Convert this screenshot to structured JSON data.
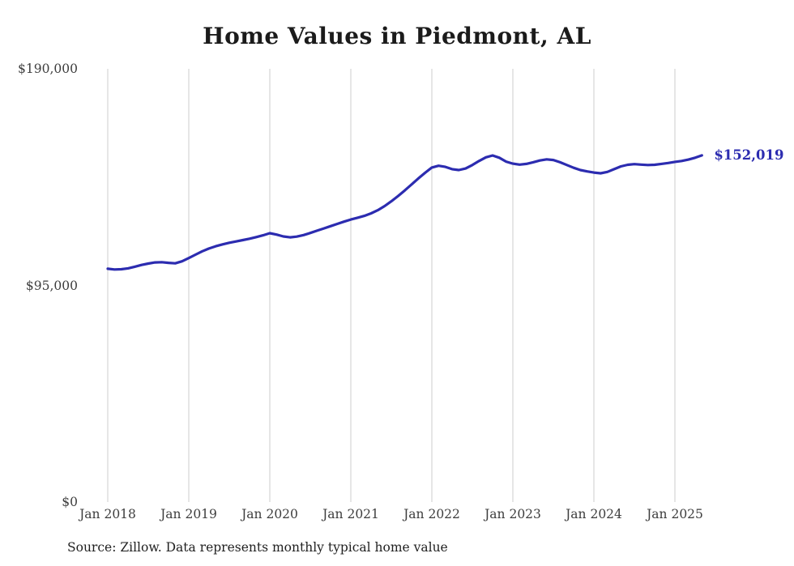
{
  "page": {
    "title": "Home Values in Piedmont, AL",
    "source": "Source: Zillow. Data represents monthly typical home value"
  },
  "chart_data": {
    "type": "line",
    "title": "Home Values in Piedmont, AL",
    "xlabel": "",
    "ylabel": "",
    "ylim": [
      0,
      190000
    ],
    "grid": "vertical-only",
    "line_color": "#2c2cb0",
    "grid_color": "#cccccc",
    "end_label": "$152,019",
    "end_value": 152019,
    "x_tick_labels": [
      "Jan 2018",
      "Jan 2019",
      "Jan 2020",
      "Jan 2021",
      "Jan 2022",
      "Jan 2023",
      "Jan 2024",
      "Jan 2025"
    ],
    "y_ticks": [
      {
        "label": "$190,000",
        "value": 190000
      },
      {
        "label": "$95,000",
        "value": 95000
      },
      {
        "label": "$0",
        "value": 0
      }
    ],
    "series": [
      {
        "name": "Typical home value",
        "start": "2018-01",
        "interval": "monthly",
        "values": [
          102300,
          102000,
          102100,
          102500,
          103200,
          104000,
          104600,
          105100,
          105200,
          104900,
          104700,
          105600,
          107000,
          108500,
          110000,
          111200,
          112200,
          113000,
          113700,
          114300,
          114900,
          115500,
          116200,
          117000,
          117900,
          117300,
          116500,
          116100,
          116400,
          117100,
          118000,
          119000,
          120000,
          121000,
          122000,
          123000,
          123900,
          124700,
          125500,
          126600,
          128000,
          129800,
          131900,
          134200,
          136700,
          139300,
          141900,
          144400,
          146700,
          147500,
          147000,
          146000,
          145600,
          146300,
          147800,
          149600,
          151200,
          152000,
          151000,
          149300,
          148400,
          148000,
          148300,
          149000,
          149800,
          150300,
          150000,
          149000,
          147800,
          146600,
          145600,
          145000,
          144500,
          144200,
          144800,
          146000,
          147200,
          147900,
          148200,
          148000,
          147800,
          147900,
          148300,
          148700,
          149200,
          149600,
          150200,
          151000,
          152019
        ]
      }
    ]
  }
}
